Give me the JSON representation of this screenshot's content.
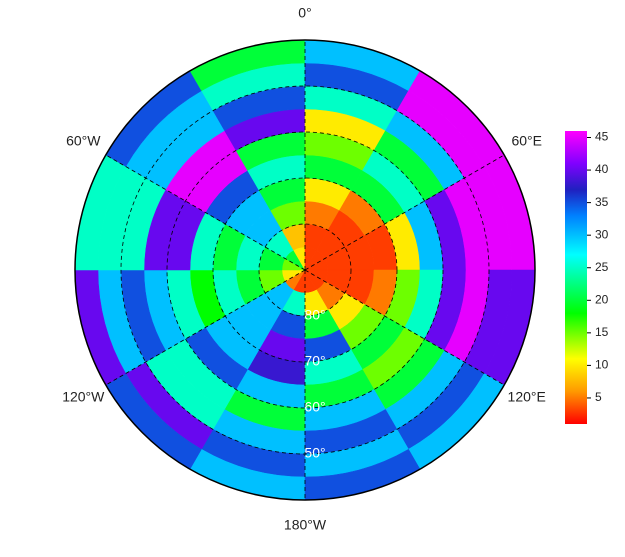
{
  "chart_data": {
    "type": "polar_heatmap",
    "lon_labels": [
      {
        "value": 0,
        "label": "0°"
      },
      {
        "value": 60,
        "label": "60°E"
      },
      {
        "value": 120,
        "label": "120°E"
      },
      {
        "value": 180,
        "label": "180°W"
      },
      {
        "value": -120,
        "label": "120°W"
      },
      {
        "value": -60,
        "label": "60°W"
      }
    ],
    "lat_labels": [
      {
        "value": -80,
        "label": "80°"
      },
      {
        "value": -70,
        "label": "70°"
      },
      {
        "value": -60,
        "label": "60°"
      },
      {
        "value": -50,
        "label": "50°"
      }
    ],
    "latlim": [
      -90,
      -40
    ],
    "lon_edges": [
      -180,
      -150,
      -120,
      -90,
      -60,
      -30,
      0,
      30,
      60,
      90,
      120,
      150,
      180
    ],
    "lat_edges": [
      -90,
      -85,
      -80,
      -75,
      -70,
      -65,
      -60,
      -55,
      -50,
      -45,
      -40
    ],
    "values": [
      [
        3,
        5,
        10,
        15,
        20,
        10,
        3,
        3,
        3,
        3,
        3,
        3
      ],
      [
        25,
        30,
        15,
        20,
        25,
        8,
        3,
        3,
        3,
        3,
        5,
        10
      ],
      [
        35,
        30,
        20,
        25,
        30,
        15,
        5,
        3,
        3,
        3,
        10,
        20
      ],
      [
        40,
        30,
        25,
        20,
        30,
        20,
        10,
        5,
        3,
        5,
        15,
        35
      ],
      [
        38,
        30,
        18,
        25,
        35,
        25,
        20,
        20,
        10,
        15,
        20,
        25
      ],
      [
        30,
        35,
        25,
        40,
        45,
        20,
        15,
        25,
        30,
        25,
        15,
        20
      ],
      [
        20,
        25,
        30,
        40,
        45,
        40,
        10,
        20,
        40,
        40,
        20,
        30
      ],
      [
        30,
        25,
        35,
        25,
        30,
        35,
        25,
        30,
        45,
        45,
        30,
        35
      ],
      [
        35,
        40,
        30,
        25,
        30,
        25,
        35,
        45,
        45,
        40,
        35,
        30
      ],
      [
        30,
        35,
        40,
        25,
        35,
        20,
        30,
        45,
        45,
        40,
        30,
        35
      ]
    ],
    "colorscale": [
      [
        1,
        "#ff0000"
      ],
      [
        6,
        "#ff9900"
      ],
      [
        11,
        "#ffff00"
      ],
      [
        18,
        "#00ff00"
      ],
      [
        27,
        "#00ffff"
      ],
      [
        33,
        "#0080ff"
      ],
      [
        37,
        "#2020c0"
      ],
      [
        41,
        "#8000ff"
      ],
      [
        46,
        "#ff00ff"
      ]
    ],
    "clim": [
      1,
      46
    ],
    "cticks": [
      5,
      10,
      15,
      20,
      25,
      30,
      35,
      40,
      45
    ]
  }
}
